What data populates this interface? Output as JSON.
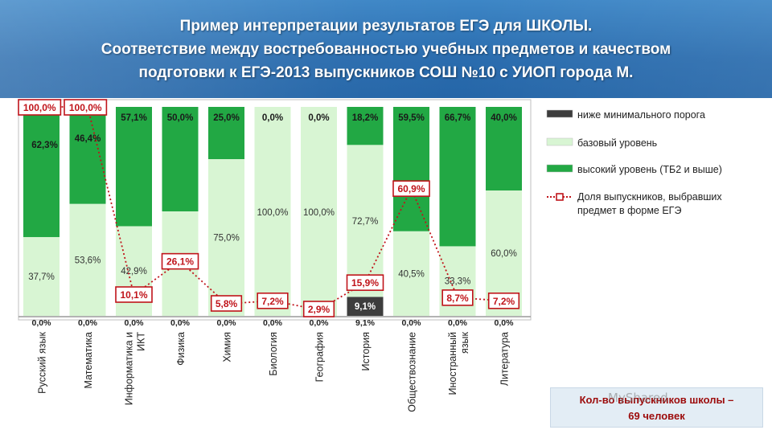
{
  "header": {
    "line1": "Пример интерпретации результатов ЕГЭ для ШКОЛЫ.",
    "line2": "Соответствие между востребованностью учебных предметов и качеством",
    "line3": "подготовки к ЕГЭ-2013  выпускников СОШ №10 с УИОП города М."
  },
  "chart_data": {
    "type": "bar",
    "stacked": true,
    "categories": [
      "Русский язык",
      "Математика",
      "Информатика и ИКТ",
      "Физика",
      "Химия",
      "Биология",
      "География",
      "История",
      "Обществознание",
      "Иностранный язык",
      "Литература"
    ],
    "category_lines": [
      [
        "Русский язык"
      ],
      [
        "Математика"
      ],
      [
        "Информатика и",
        "ИКТ"
      ],
      [
        "Физика"
      ],
      [
        "Химия"
      ],
      [
        "Биология"
      ],
      [
        "География"
      ],
      [
        "История"
      ],
      [
        "Обществознание"
      ],
      [
        "Иностранный",
        "язык"
      ],
      [
        "Литература"
      ]
    ],
    "series": [
      {
        "name": "ниже минимального порога",
        "color": "#3d3d3d",
        "values": [
          0.0,
          0.0,
          0.0,
          0.0,
          0.0,
          0.0,
          0.0,
          9.1,
          0.0,
          0.0,
          0.0
        ],
        "labels": [
          "0,0%",
          "0,0%",
          "0,0%",
          "0,0%",
          "0,0%",
          "0,0%",
          "0,0%",
          "9,1%",
          "0,0%",
          "0,0%",
          "0,0%"
        ]
      },
      {
        "name": "базовый уровень",
        "color": "#d8f5d3",
        "values": [
          37.7,
          53.6,
          42.9,
          50.0,
          75.0,
          100.0,
          100.0,
          72.7,
          40.5,
          33.3,
          60.0
        ],
        "labels": [
          "37,7%",
          "53,6%",
          "42,9%",
          "50,0%",
          "75,0%",
          "100,0%",
          "100,0%",
          "72,7%",
          "40,5%",
          "33,3%",
          "60,0%"
        ]
      },
      {
        "name": "высокий уровень (ТБ2 и выше)",
        "color": "#22a844",
        "values": [
          62.3,
          46.4,
          57.1,
          50.0,
          25.0,
          0.0,
          0.0,
          18.2,
          59.5,
          66.7,
          40.0
        ],
        "labels": [
          "62,3%",
          "46,4%",
          "57,1%",
          "50,0%",
          "25,0%",
          "0,0%",
          "0,0%",
          "18,2%",
          "59,5%",
          "66,7%",
          "40,0%"
        ]
      }
    ],
    "line_series": {
      "name": "Доля выпускников, выбравших предмет в форме ЕГЭ",
      "legend_lines": [
        "Доля выпускников, выбравших",
        "предмет в форме ЕГЭ"
      ],
      "color": "#c0141a",
      "values": [
        100.0,
        100.0,
        10.1,
        26.1,
        5.8,
        7.2,
        2.9,
        15.9,
        60.9,
        8.7,
        7.2
      ],
      "labels": [
        "100,0%",
        "100,0%",
        "10,1%",
        "26,1%",
        "5,8%",
        "7,2%",
        "2,9%",
        "15,9%",
        "60,9%",
        "8,7%",
        "7,2%"
      ]
    },
    "ylim": [
      0,
      100
    ],
    "legend_position": "right",
    "colors": {
      "label_box_border": "#c0141a",
      "label_box_text": "#c0141a",
      "header_bg": "#2a6cae"
    }
  },
  "footer": {
    "line1": "Кол-во выпускников  школы –",
    "line2": "69 человек",
    "watermark": "MyShared"
  }
}
